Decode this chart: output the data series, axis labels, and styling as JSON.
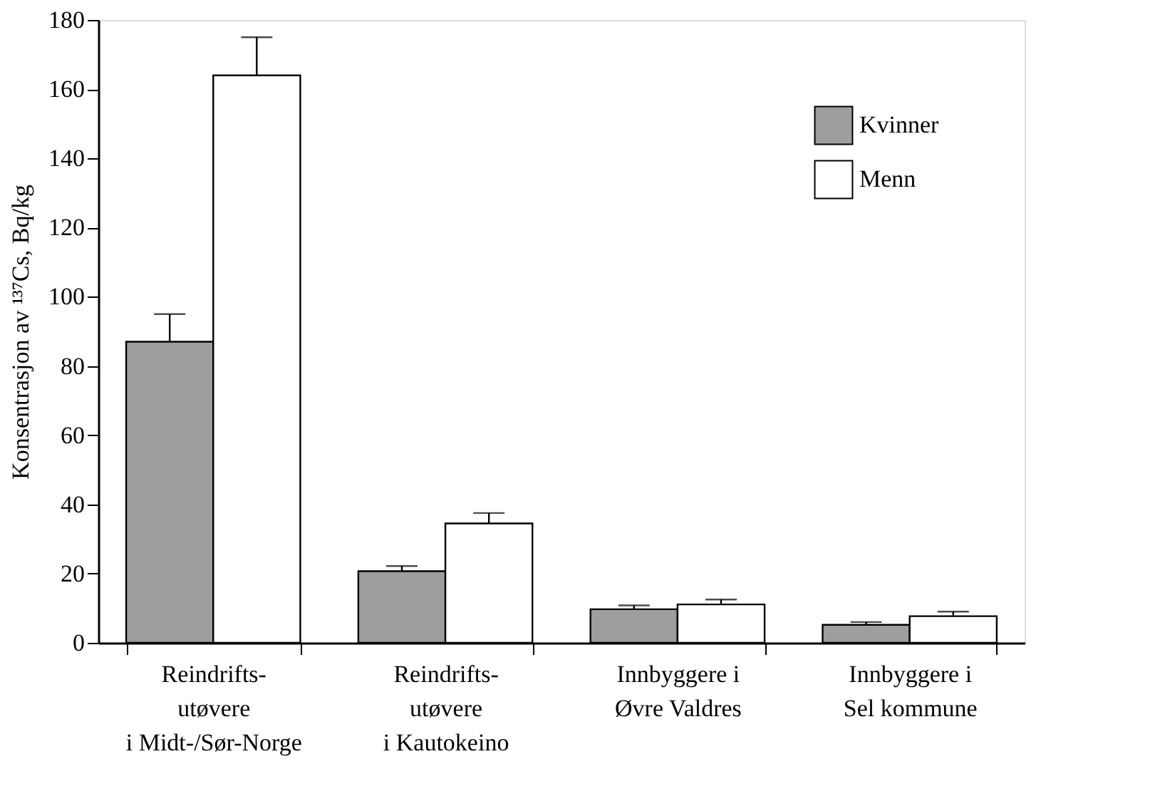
{
  "chart_data": {
    "type": "bar",
    "ylabel": "Konsentrasjon av ¹³⁷Cs, Bq/kg",
    "categories": [
      "Reindrifts-\nutøvere\ni Midt-/Sør-Norge",
      "Reindrifts-\nutøvere\ni Kautokeino",
      "Innbyggere i\nØvre Valdres",
      "Innbyggere i\nSel kommune"
    ],
    "series": [
      {
        "name": "Kvinner",
        "color": "#9e9e9e",
        "values": [
          87,
          20.7,
          9.7,
          5.2
        ],
        "errors": [
          [
            87,
            95
          ],
          [
            20.7,
            22.2
          ],
          [
            9.7,
            10.8
          ],
          [
            5.2,
            6.0
          ]
        ]
      },
      {
        "name": "Menn",
        "color": "#ffffff",
        "values": [
          164,
          34.5,
          11.1,
          7.7
        ],
        "errors": [
          [
            164,
            175
          ],
          [
            34.5,
            37.5
          ],
          [
            11.1,
            12.5
          ],
          [
            7.7,
            9.0
          ]
        ]
      }
    ],
    "ylim": [
      0,
      180
    ],
    "yticks": [
      0,
      20,
      40,
      60,
      80,
      100,
      120,
      140,
      160,
      180
    ],
    "grid": false,
    "legend": "top right"
  }
}
